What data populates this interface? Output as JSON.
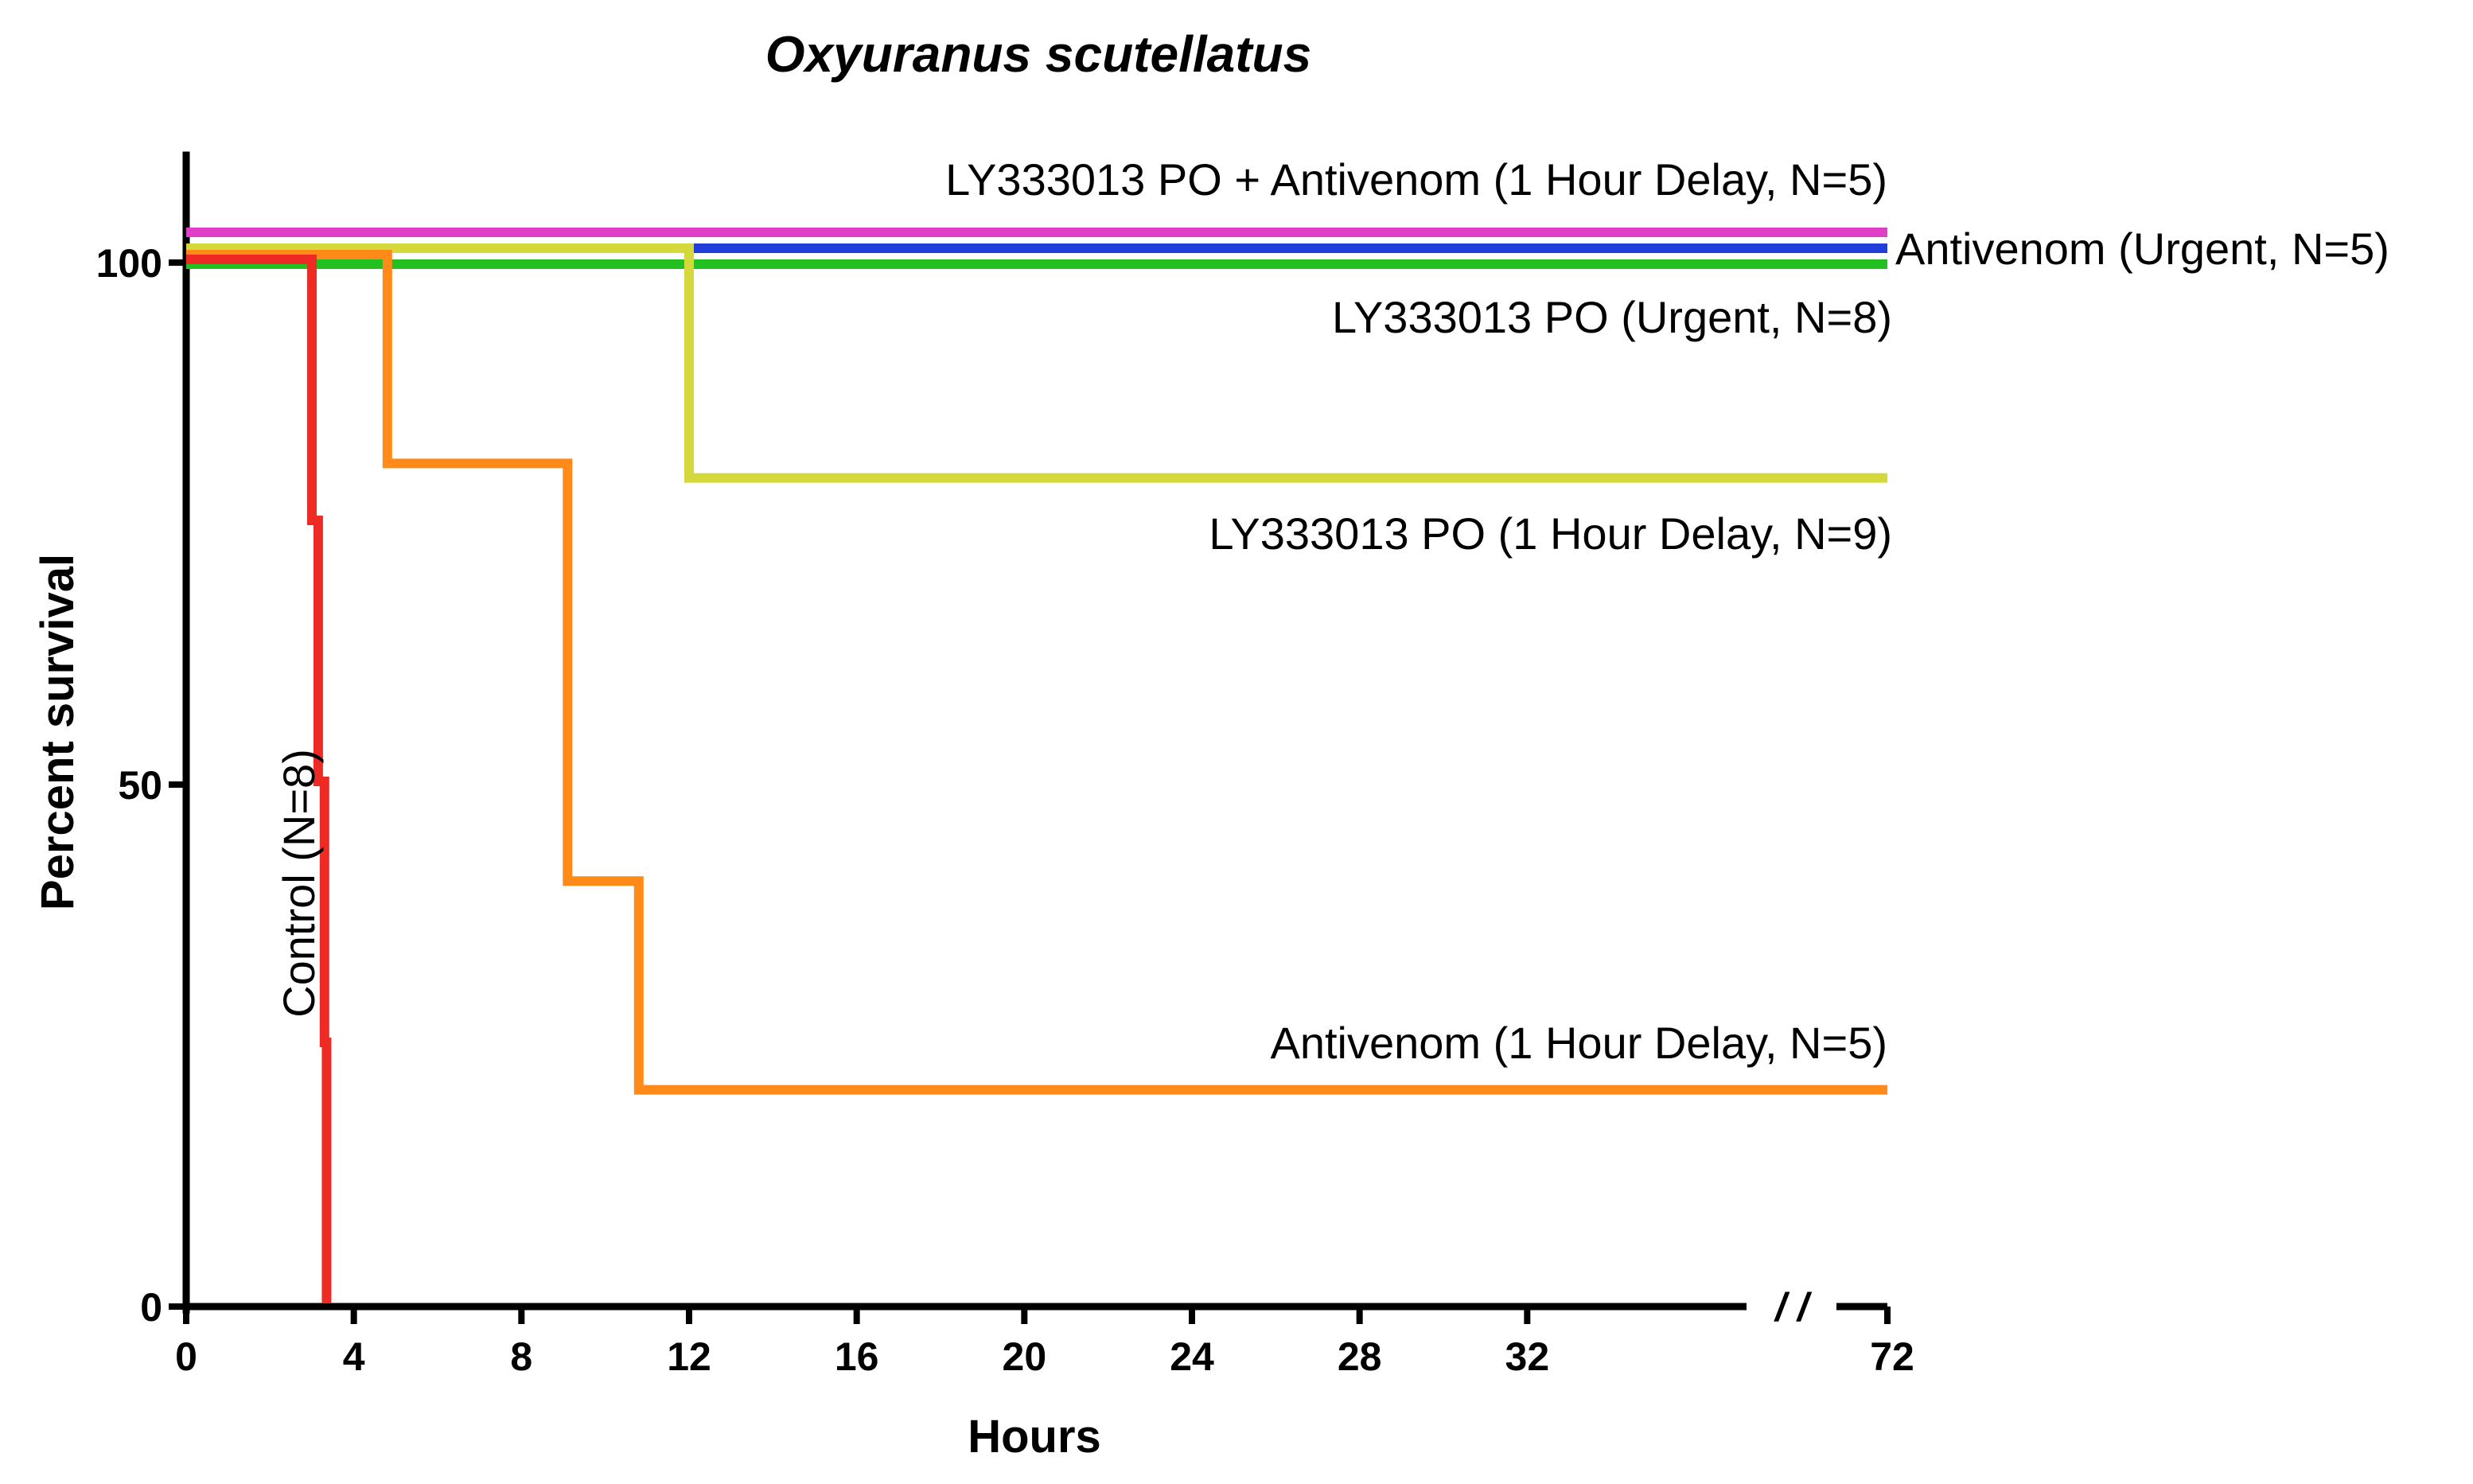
{
  "chart_data": {
    "type": "line",
    "step": true,
    "title": "Oxyuranus scutellatus",
    "xlabel": "Hours",
    "ylabel": "Percent survival",
    "xlim": [
      0,
      36
    ],
    "ylim": [
      0,
      100
    ],
    "x_ticks": [
      0,
      4,
      8,
      12,
      16,
      20,
      24,
      28,
      32
    ],
    "x_break_tick": {
      "value": 72,
      "label": "72"
    },
    "x_break_symbol": "/ /",
    "y_ticks": [
      0,
      50,
      100
    ],
    "grid": false,
    "legend": "inline labels",
    "series": [
      {
        "name": "LY333013 PO + Antivenom (1 Hour Delay, N=5)",
        "color": "#e040c8",
        "x": [
          0,
          72
        ],
        "y": [
          100,
          100
        ]
      },
      {
        "name": "Antivenom (Urgent, N=5)",
        "color": "#1f3fd8",
        "x": [
          0,
          72
        ],
        "y": [
          100,
          100
        ]
      },
      {
        "name": "LY333013 PO (Urgent, N=8)",
        "color": "#22c020",
        "x": [
          0,
          72
        ],
        "y": [
          100,
          100
        ]
      },
      {
        "name": "LY333013 PO (1 Hour Delay, N=9)",
        "color": "#d4d83a",
        "x": [
          0,
          12,
          72
        ],
        "y": [
          100,
          78,
          78
        ]
      },
      {
        "name": "Antivenom (1 Hour Delay, N=5)",
        "color": "#ff8a1a",
        "x": [
          0,
          4.8,
          9.1,
          10.8,
          72
        ],
        "y": [
          100,
          80,
          40,
          20,
          20
        ]
      },
      {
        "name": "Control (N=8)",
        "color": "#ee2a24",
        "x": [
          0,
          3.0,
          3.15,
          3.3,
          3.35
        ],
        "y": [
          100,
          75,
          50,
          25,
          0
        ]
      }
    ]
  }
}
